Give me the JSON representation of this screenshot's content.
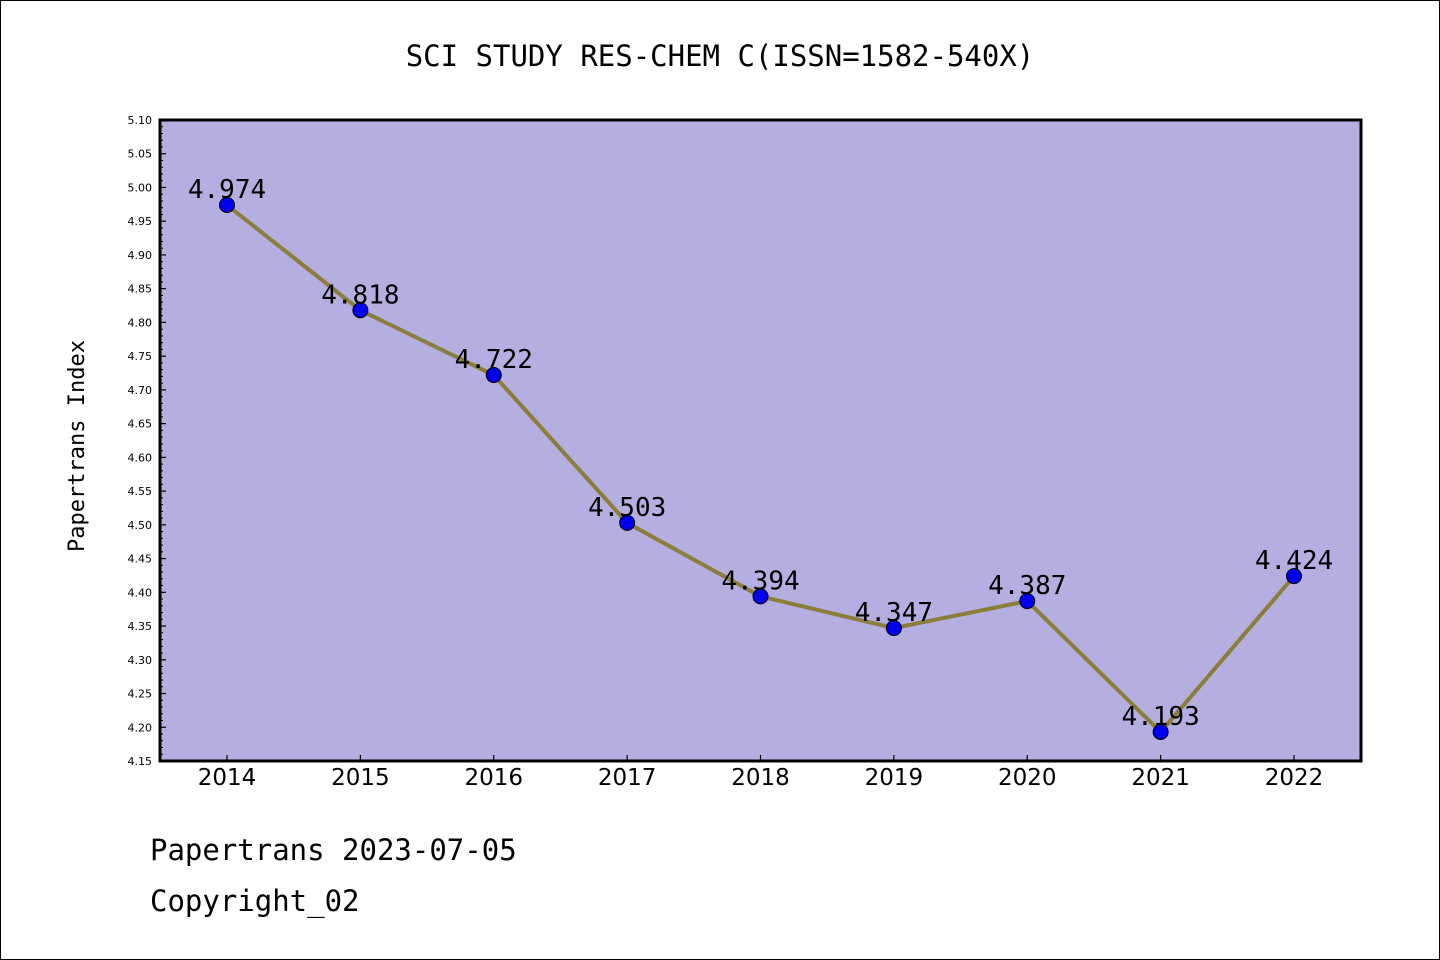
{
  "chart_data": {
    "type": "line",
    "title": "SCI STUDY RES-CHEM C(ISSN=1582-540X)",
    "ylabel": "Papertrans Index",
    "xlabel": "",
    "categories": [
      "2014",
      "2015",
      "2016",
      "2017",
      "2018",
      "2019",
      "2020",
      "2021",
      "2022"
    ],
    "values": [
      4.974,
      4.818,
      4.722,
      4.503,
      4.394,
      4.347,
      4.387,
      4.193,
      4.424
    ],
    "data_labels": [
      "4.974",
      "4.818",
      "4.722",
      "4.503",
      "4.394",
      "4.347",
      "4.387",
      "4.193",
      "4.424"
    ],
    "ylim": [
      4.15,
      5.1
    ],
    "yticks": [
      "4.15",
      "4.20",
      "4.25",
      "4.30",
      "4.35",
      "4.40",
      "4.45",
      "4.50",
      "4.55",
      "4.60",
      "4.65",
      "4.70",
      "4.75",
      "4.80",
      "4.85",
      "4.90",
      "4.95",
      "5.00",
      "5.05",
      "5.10"
    ],
    "grid": false,
    "colors": {
      "plot_background": "#b5aee0",
      "line": "#8b7d3a",
      "marker": "#0000ee"
    }
  },
  "footer": {
    "date_line": "Papertrans 2023-07-05",
    "copyright": "Copyright_02"
  }
}
